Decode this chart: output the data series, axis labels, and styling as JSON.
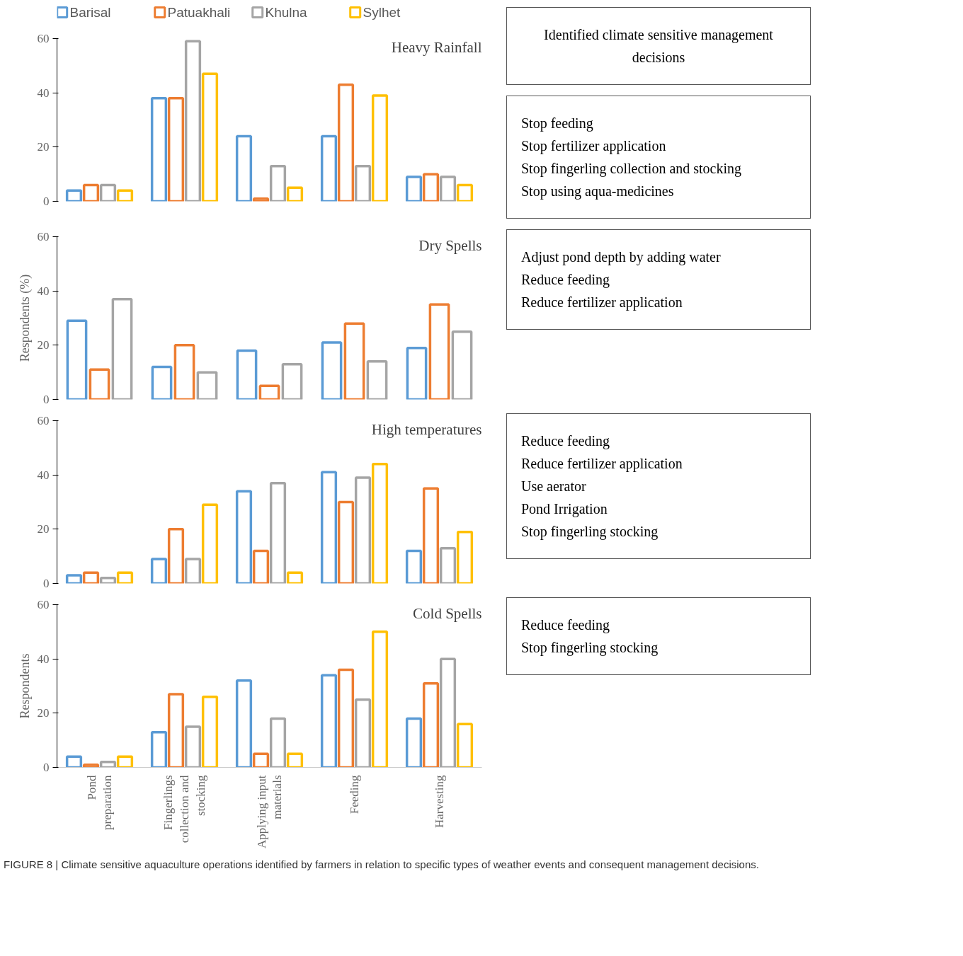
{
  "chart_data": [
    {
      "type": "bar",
      "title": "Heavy Rainfall",
      "categories": [
        "Pond preparation",
        "Fingerlings collection and stocking",
        "Applying input materials",
        "Feeding",
        "Harvesting"
      ],
      "ylim": [
        0,
        60
      ],
      "yticks": [
        0,
        20,
        40,
        60
      ],
      "grid": false,
      "legend": "top",
      "tick_labels": "y",
      "series": [
        {
          "name": "Barisal",
          "color": "#5b9bd5",
          "values": [
            4,
            38,
            24,
            24,
            9
          ]
        },
        {
          "name": "Patuakhali",
          "color": "#ed7d31",
          "values": [
            6,
            38,
            1,
            43,
            10
          ]
        },
        {
          "name": "Khulna",
          "color": "#a5a5a5",
          "values": [
            6,
            59,
            13,
            13,
            9
          ]
        },
        {
          "name": "Sylhet",
          "color": "#ffc000",
          "values": [
            4,
            47,
            5,
            39,
            6
          ]
        }
      ],
      "annotations": [
        "Identified climate sensitive management decisions",
        "Stop feeding\nStop fertilizer application\nStop fingerling collection and stocking\nStop using aqua-medicines"
      ]
    },
    {
      "type": "bar",
      "title": "Dry Spells",
      "ylabel": "Respondents (%)",
      "categories": [
        "Pond preparation",
        "Fingerlings collection and stocking",
        "Applying input materials",
        "Feeding",
        "Harvesting"
      ],
      "ylim": [
        0,
        60
      ],
      "yticks": [
        0,
        20,
        40,
        60
      ],
      "grid": false,
      "tick_labels": "y",
      "series": [
        {
          "color": "#5b9bd5",
          "values": [
            29,
            12,
            18,
            21,
            19
          ]
        },
        {
          "color": "#ed7d31",
          "values": [
            11,
            20,
            5,
            28,
            35
          ]
        },
        {
          "color": "#a5a5a5",
          "values": [
            37,
            10,
            13,
            14,
            25
          ]
        }
      ],
      "annotations": [
        "Adjust pond depth by adding water\nReduce feeding\nReduce fertilizer application"
      ]
    },
    {
      "type": "bar",
      "title": "High temperatures",
      "categories": [
        "Pond preparation",
        "Fingerlings collection and stocking",
        "Applying input materials",
        "Feeding",
        "Harvesting"
      ],
      "ylim": [
        0,
        60
      ],
      "yticks": [
        0,
        20,
        40,
        60
      ],
      "grid": false,
      "tick_labels": "y",
      "series": [
        {
          "color": "#5b9bd5",
          "values": [
            3,
            9,
            34,
            41,
            12
          ]
        },
        {
          "color": "#ed7d31",
          "values": [
            4,
            20,
            12,
            30,
            35
          ]
        },
        {
          "color": "#a5a5a5",
          "values": [
            2,
            9,
            37,
            39,
            13
          ]
        },
        {
          "color": "#ffc000",
          "values": [
            4,
            29,
            4,
            44,
            19
          ]
        }
      ],
      "annotations": [
        "Reduce feeding\nReduce fertilizer application\nUse aerator\nPond Irrigation\nStop fingerling stocking"
      ]
    },
    {
      "type": "bar",
      "title": "Cold Spells",
      "ylabel": "Respondents",
      "categories": [
        "Pond preparation",
        "Fingerlings collection and stocking",
        "Applying input materials",
        "Feeding",
        "Harvesting"
      ],
      "ylim": [
        0,
        60
      ],
      "yticks": [
        0,
        20,
        40,
        60
      ],
      "grid": false,
      "series": [
        {
          "color": "#5b9bd5",
          "values": [
            4,
            13,
            32,
            34,
            18
          ]
        },
        {
          "color": "#ed7d31",
          "values": [
            1,
            27,
            5,
            36,
            31
          ]
        },
        {
          "color": "#a5a5a5",
          "values": [
            2,
            15,
            18,
            25,
            40
          ]
        },
        {
          "color": "#ffc000",
          "values": [
            4,
            26,
            5,
            50,
            16
          ]
        }
      ],
      "annotations": [
        "Reduce feeding\nStop fingerling stocking",
        "FIGURE 8 | Climate sensitive aquaculture operations identified by farmers in relation to specific types of weather events and consequent management decisions."
      ]
    }
  ]
}
